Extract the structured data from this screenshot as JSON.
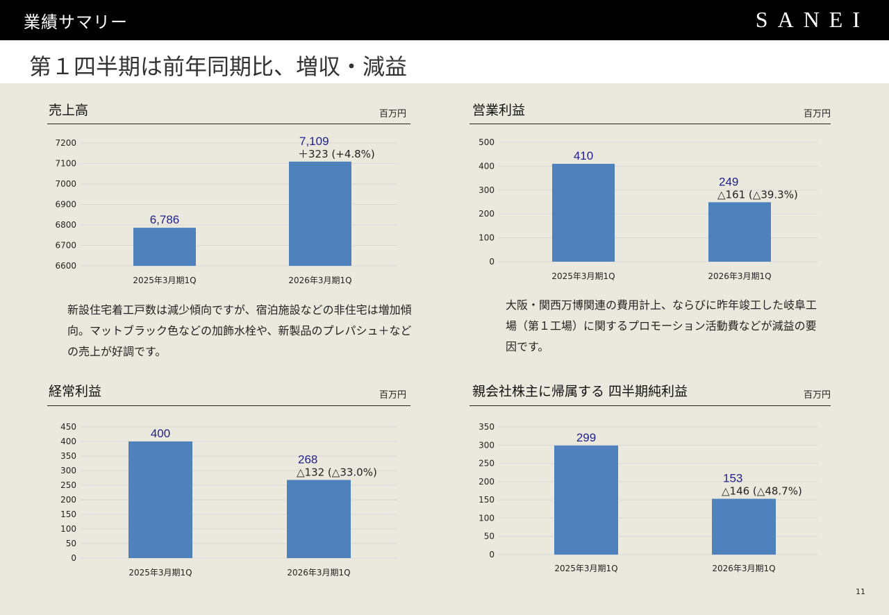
{
  "header": {
    "section": "業績サマリー",
    "logo": "SANEI"
  },
  "headline": "第１四半期は前年同期比、増収・減益",
  "colors": {
    "bar": "#4f81bd",
    "label": "#1f1f8a",
    "grid": "#d9d9d9"
  },
  "panels": [
    {
      "title": "売上高",
      "unit": "百万円",
      "description": "新設住宅着工戸数は減少傾向ですが、宿泊施設などの非住宅は増加傾向。マットブラック色などの加飾水栓や、新製品のプレパシュ＋などの売上が好調です。"
    },
    {
      "title": "営業利益",
      "unit": "百万円",
      "description": "大阪・関西万博関連の費用計上、ならびに昨年竣工した岐阜工場（第１工場）に関するプロモーション活動費などが減益の要因です。"
    },
    {
      "title": "経常利益",
      "unit": "百万円"
    },
    {
      "title": "親会社株主に帰属する 四半期純利益",
      "unit": "百万円"
    }
  ],
  "page_number": "11",
  "chart_data": [
    {
      "type": "bar",
      "categories": [
        "2025年3月期1Q",
        "2026年3月期1Q"
      ],
      "values": [
        6786,
        7109
      ],
      "value_labels": [
        "6,786",
        "7,109"
      ],
      "change_labels": [
        "",
        "＋323 (+4.8%)"
      ],
      "ylim": [
        6600,
        7200
      ],
      "yticks": [
        6600,
        6700,
        6800,
        6900,
        7000,
        7100,
        7200
      ],
      "grid": true
    },
    {
      "type": "bar",
      "categories": [
        "2025年3月期1Q",
        "2026年3月期1Q"
      ],
      "values": [
        410,
        249
      ],
      "value_labels": [
        "410",
        "249"
      ],
      "change_labels": [
        "",
        "△161 (△39.3%)"
      ],
      "ylim": [
        0,
        500
      ],
      "yticks": [
        0,
        100,
        200,
        300,
        400,
        500
      ],
      "grid": true
    },
    {
      "type": "bar",
      "categories": [
        "2025年3月期1Q",
        "2026年3月期1Q"
      ],
      "values": [
        400,
        268
      ],
      "value_labels": [
        "400",
        "268"
      ],
      "change_labels": [
        "",
        "△132 (△33.0%)"
      ],
      "ylim": [
        0,
        450
      ],
      "yticks": [
        0,
        50,
        100,
        150,
        200,
        250,
        300,
        350,
        400,
        450
      ],
      "grid": true
    },
    {
      "type": "bar",
      "categories": [
        "2025年3月期1Q",
        "2026年3月期1Q"
      ],
      "values": [
        299,
        153
      ],
      "value_labels": [
        "299",
        "153"
      ],
      "change_labels": [
        "",
        "△146 (△48.7%)"
      ],
      "ylim": [
        0,
        350
      ],
      "yticks": [
        0,
        50,
        100,
        150,
        200,
        250,
        300,
        350
      ],
      "grid": true
    }
  ]
}
